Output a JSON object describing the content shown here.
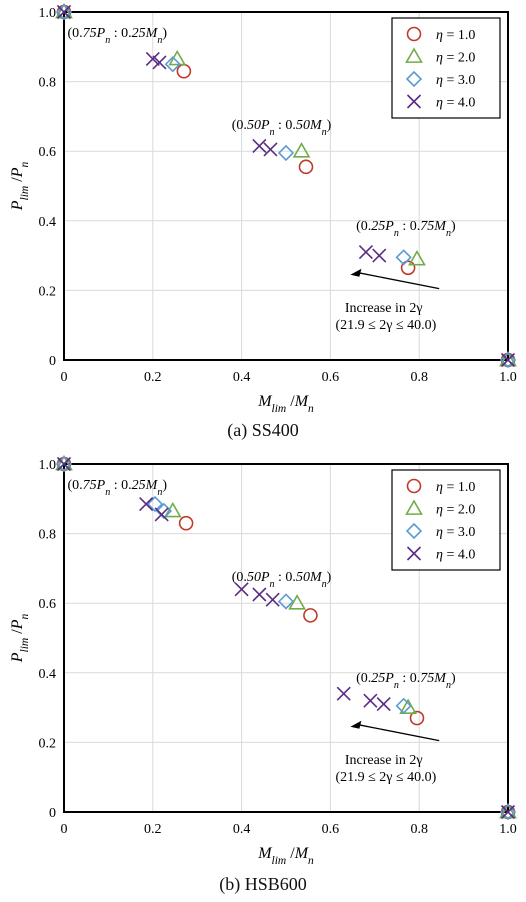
{
  "colors": {
    "eta1": "#c0392b",
    "eta2": "#70ad47",
    "eta3": "#5b9bd5",
    "eta4": "#5b2c83",
    "grid": "#d9d9d9",
    "axis": "#000000"
  },
  "chart_data": [
    {
      "type": "scatter",
      "caption": "(a) SS400",
      "xlabel": "M_lim /M_n",
      "ylabel": "P_lim /P_n",
      "xlim": [
        0,
        1.0
      ],
      "ylim": [
        0,
        1.0
      ],
      "grid": true,
      "legend_position": "top-right",
      "x_tick_labels": [
        "0",
        "0.2",
        "0.4",
        "0.6",
        "0.8",
        "1.0"
      ],
      "y_tick_labels": [
        "0",
        "0.2",
        "0.4",
        "0.6",
        "0.8",
        "1.0"
      ],
      "annotations": {
        "group_1": "(0.75P_n : 0.25M_n)",
        "group_2": "(0.50P_n : 0.50M_n)",
        "group_3": "(0.25P_n : 0.75M_n)",
        "arrow_line1": "Increase in 2γ",
        "arrow_line2": "(21.9 ≤ 2γ ≤ 40.0)"
      },
      "series": [
        {
          "name": "η = 1.0",
          "marker": "circle",
          "color": "#c0392b",
          "points": [
            [
              0,
              1
            ],
            [
              0.27,
              0.83
            ],
            [
              0.545,
              0.555
            ],
            [
              0.775,
              0.265
            ],
            [
              1,
              0
            ]
          ]
        },
        {
          "name": "η = 2.0",
          "marker": "triangle",
          "color": "#70ad47",
          "points": [
            [
              0,
              1
            ],
            [
              0.255,
              0.865
            ],
            [
              0.535,
              0.6
            ],
            [
              0.795,
              0.29
            ],
            [
              1,
              0
            ]
          ]
        },
        {
          "name": "η = 3.0",
          "marker": "diamond",
          "color": "#5b9bd5",
          "points": [
            [
              0,
              1
            ],
            [
              0.245,
              0.85
            ],
            [
              0.5,
              0.595
            ],
            [
              0.765,
              0.295
            ],
            [
              1,
              0
            ]
          ]
        },
        {
          "name": "η = 4.0",
          "marker": "x",
          "color": "#5b2c83",
          "points": [
            [
              0,
              1
            ],
            [
              0.2,
              0.865
            ],
            [
              0.215,
              0.855
            ],
            [
              0.44,
              0.615
            ],
            [
              0.465,
              0.605
            ],
            [
              0.68,
              0.31
            ],
            [
              0.71,
              0.3
            ],
            [
              1,
              0
            ]
          ]
        }
      ]
    },
    {
      "type": "scatter",
      "caption": "(b) HSB600",
      "xlabel": "M_lim /M_n",
      "ylabel": "P_lim /P_n",
      "xlim": [
        0,
        1.0
      ],
      "ylim": [
        0,
        1.0
      ],
      "grid": true,
      "legend_position": "top-right",
      "x_tick_labels": [
        "0",
        "0.2",
        "0.4",
        "0.6",
        "0.8",
        "1.0"
      ],
      "y_tick_labels": [
        "0",
        "0.2",
        "0.4",
        "0.6",
        "0.8",
        "1.0"
      ],
      "annotations": {
        "group_1": "(0.75P_n : 0.25M_n)",
        "group_2": "(0.50P_n : 0.50M_n)",
        "group_3": "(0.25P_n : 0.75M_n)",
        "arrow_line1": "Increase in 2γ",
        "arrow_line2": "(21.9 ≤ 2γ ≤ 40.0)"
      },
      "series": [
        {
          "name": "η = 1.0",
          "marker": "circle",
          "color": "#c0392b",
          "points": [
            [
              0,
              1
            ],
            [
              0.275,
              0.83
            ],
            [
              0.555,
              0.565
            ],
            [
              0.795,
              0.27
            ],
            [
              1,
              0
            ]
          ]
        },
        {
          "name": "η = 2.0",
          "marker": "triangle",
          "color": "#70ad47",
          "points": [
            [
              0,
              1
            ],
            [
              0.245,
              0.865
            ],
            [
              0.525,
              0.6
            ],
            [
              0.775,
              0.3
            ],
            [
              1,
              0
            ]
          ]
        },
        {
          "name": "η = 3.0",
          "marker": "diamond",
          "color": "#5b9bd5",
          "points": [
            [
              0,
              1
            ],
            [
              0.205,
              0.885
            ],
            [
              0.225,
              0.865
            ],
            [
              0.5,
              0.605
            ],
            [
              0.765,
              0.305
            ],
            [
              1,
              0
            ]
          ]
        },
        {
          "name": "η = 4.0",
          "marker": "x",
          "color": "#5b2c83",
          "points": [
            [
              0,
              1
            ],
            [
              0.185,
              0.885
            ],
            [
              0.22,
              0.855
            ],
            [
              0.4,
              0.64
            ],
            [
              0.44,
              0.625
            ],
            [
              0.47,
              0.61
            ],
            [
              0.63,
              0.34
            ],
            [
              0.69,
              0.32
            ],
            [
              0.72,
              0.31
            ],
            [
              1,
              0
            ]
          ]
        }
      ]
    }
  ]
}
